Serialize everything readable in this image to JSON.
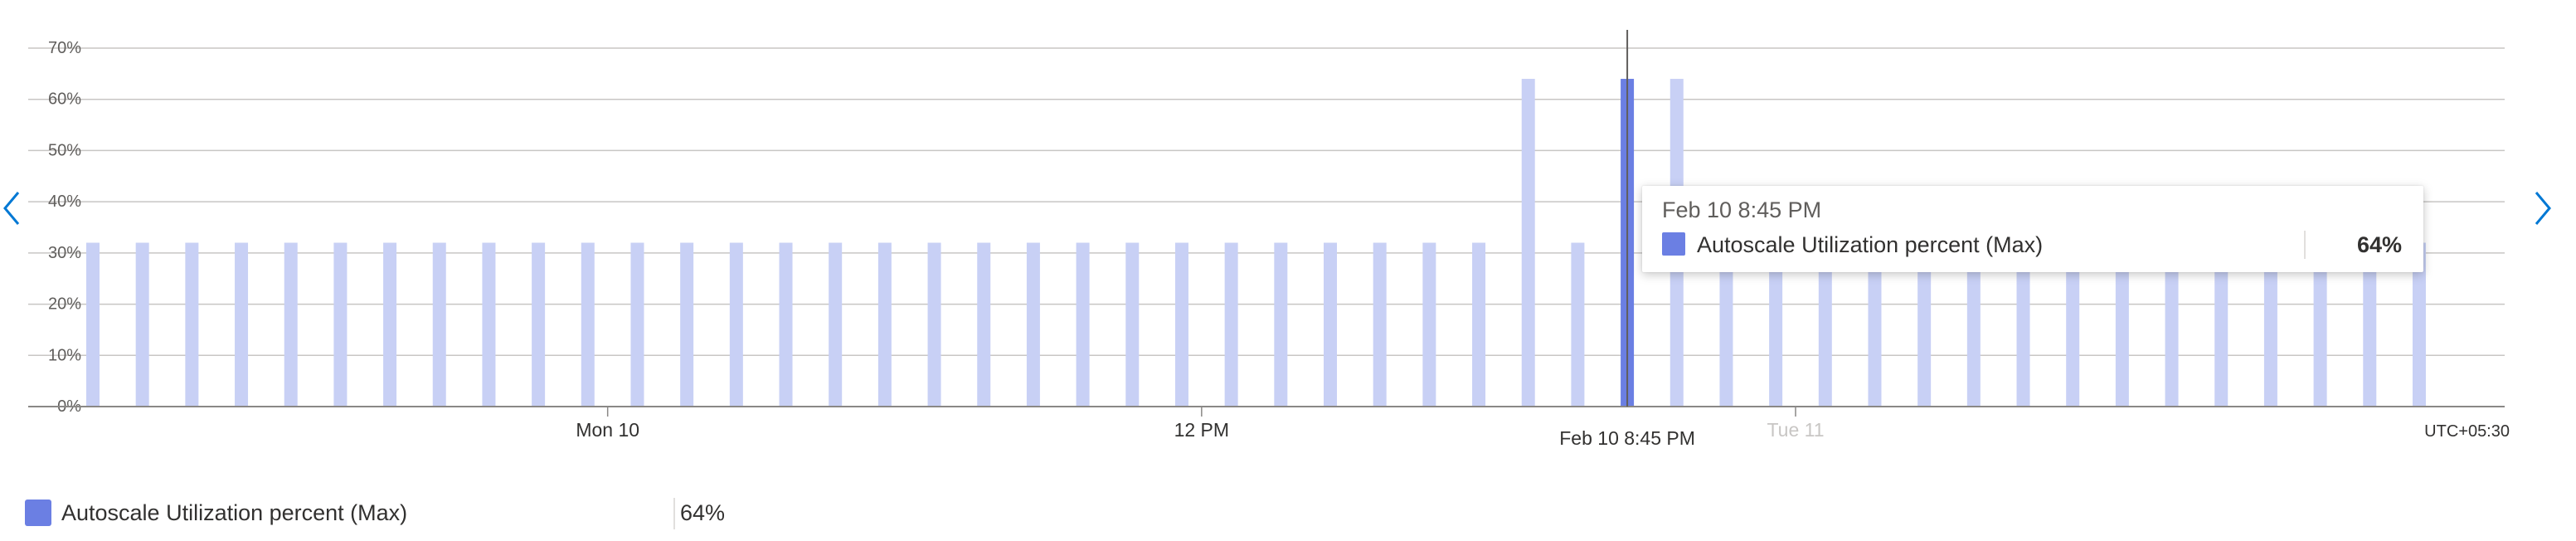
{
  "chart_data": {
    "type": "bar",
    "title": "",
    "xlabel": "",
    "ylabel": "",
    "ylim": [
      0,
      70
    ],
    "y_ticks": [
      "0%",
      "10%",
      "20%",
      "30%",
      "40%",
      "50%",
      "60%",
      "70%"
    ],
    "y_tick_values": [
      0,
      10,
      20,
      30,
      40,
      50,
      60,
      70
    ],
    "grid": true,
    "x_ticks": [
      {
        "label": "Mon 10",
        "bar_index": 10.4,
        "faded": false
      },
      {
        "label": "12 PM",
        "bar_index": 22.4,
        "faded": false
      },
      {
        "label": "Tue 11",
        "bar_index": 34.4,
        "faded": true
      }
    ],
    "cursor_label": "Feb 10 8:45 PM",
    "timezone": "UTC+05:30",
    "series": [
      {
        "name": "Autoscale Utilization percent (Max)",
        "color": "#c8d0f5",
        "highlight_color": "#6b7fe3",
        "values": [
          32,
          32,
          32,
          32,
          32,
          32,
          32,
          32,
          32,
          32,
          32,
          32,
          32,
          32,
          32,
          32,
          32,
          32,
          32,
          32,
          32,
          32,
          32,
          32,
          32,
          32,
          32,
          32,
          32,
          64,
          32,
          64,
          64,
          32,
          32,
          32,
          32,
          32,
          32,
          32,
          32,
          32,
          32,
          32,
          32,
          32,
          32,
          32
        ]
      }
    ],
    "highlight_index": 31
  },
  "tooltip": {
    "time": "Feb 10 8:45 PM",
    "series_name": "Autoscale Utilization percent (Max)",
    "value": "64%"
  },
  "legend": {
    "series_name": "Autoscale Utilization percent (Max)",
    "value": "64%",
    "color": "#6b7fe3"
  },
  "nav": {
    "left_icon": "chevron-left-icon",
    "right_icon": "chevron-right-icon"
  }
}
